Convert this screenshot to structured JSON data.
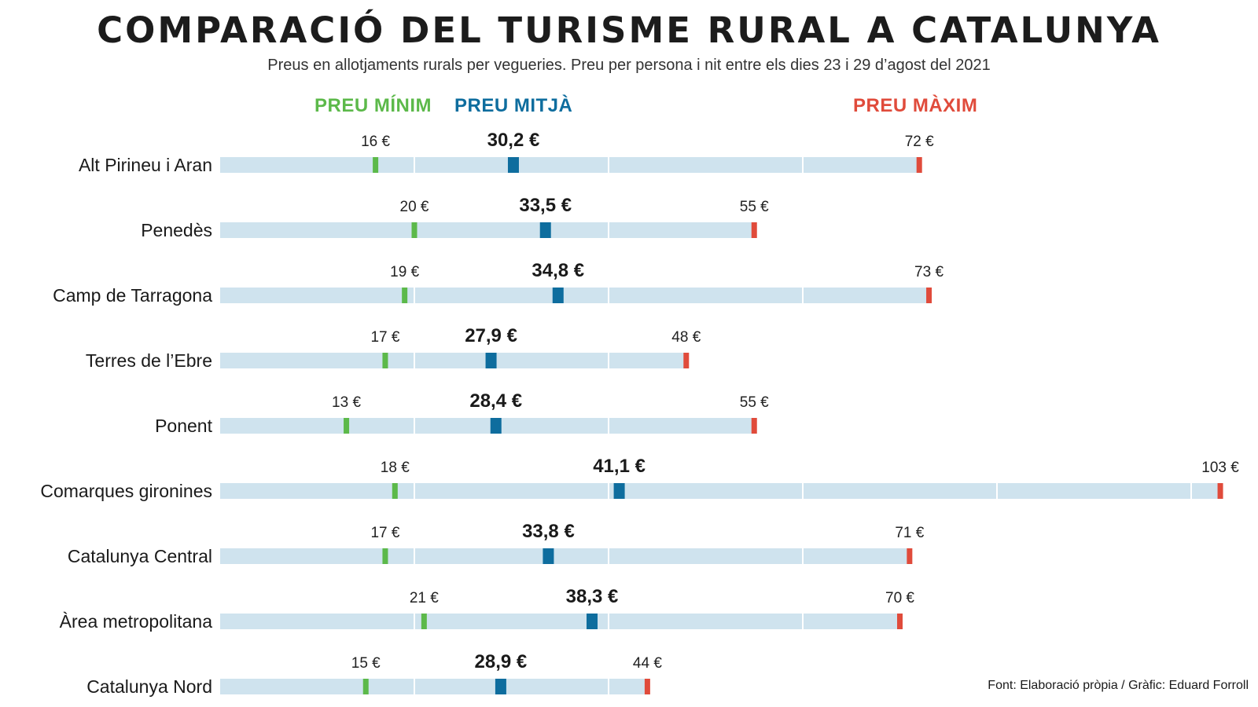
{
  "title": "COMPARACIÓ DEL TURISME RURAL A CATALUNYA",
  "subtitle": "Preus en allotjaments rurals per vegueries. Preu per persona i nit entre els dies 23 i 29 d’agost del 2021",
  "legend": {
    "min": "PREU MÍNIM",
    "avg": "PREU MITJÀ",
    "max": "PREU MÀXIM"
  },
  "credits": "Font: Elaboració pròpia / Gràfic: Eduard Forroll",
  "colors": {
    "track": "#cfe3ee",
    "divider": "#ffffff",
    "min": "#5cb94a",
    "avg": "#0e6d9e",
    "max": "#e04b3b"
  },
  "chart_data": {
    "type": "range-dot",
    "unit": "€",
    "categories": [
      "Alt Pirineu i Aran",
      "Penedès",
      "Camp de Tarragona",
      "Terres de l’Ebre",
      "Ponent",
      "Comarques gironines",
      "Catalunya Central",
      "Àrea metropolitana",
      "Catalunya Nord"
    ],
    "series": [
      {
        "name": "PREU MÍNIM",
        "values": [
          16,
          20,
          19,
          17,
          13,
          18,
          17,
          21,
          15
        ],
        "labels": [
          "16 €",
          "20 €",
          "19 €",
          "17 €",
          "13 €",
          "18 €",
          "17 €",
          "21 €",
          "15 €"
        ]
      },
      {
        "name": "PREU MITJÀ",
        "values": [
          30.2,
          33.5,
          34.8,
          27.9,
          28.4,
          41.1,
          33.8,
          38.3,
          28.9
        ],
        "labels": [
          "30,2 €",
          "33,5 €",
          "34,8 €",
          "27,9 €",
          "28,4 €",
          "41,1 €",
          "33,8 €",
          "38,3 €",
          "28,9 €"
        ]
      },
      {
        "name": "PREU MÀXIM",
        "values": [
          72,
          55,
          73,
          48,
          55,
          103,
          71,
          70,
          44
        ],
        "labels": [
          "72 €",
          "55 €",
          "73 €",
          "48 €",
          "55 €",
          "103 €",
          "71 €",
          "70 €",
          "44 €"
        ]
      }
    ],
    "xlim": [
      0,
      103
    ],
    "gridline_step": 20
  }
}
